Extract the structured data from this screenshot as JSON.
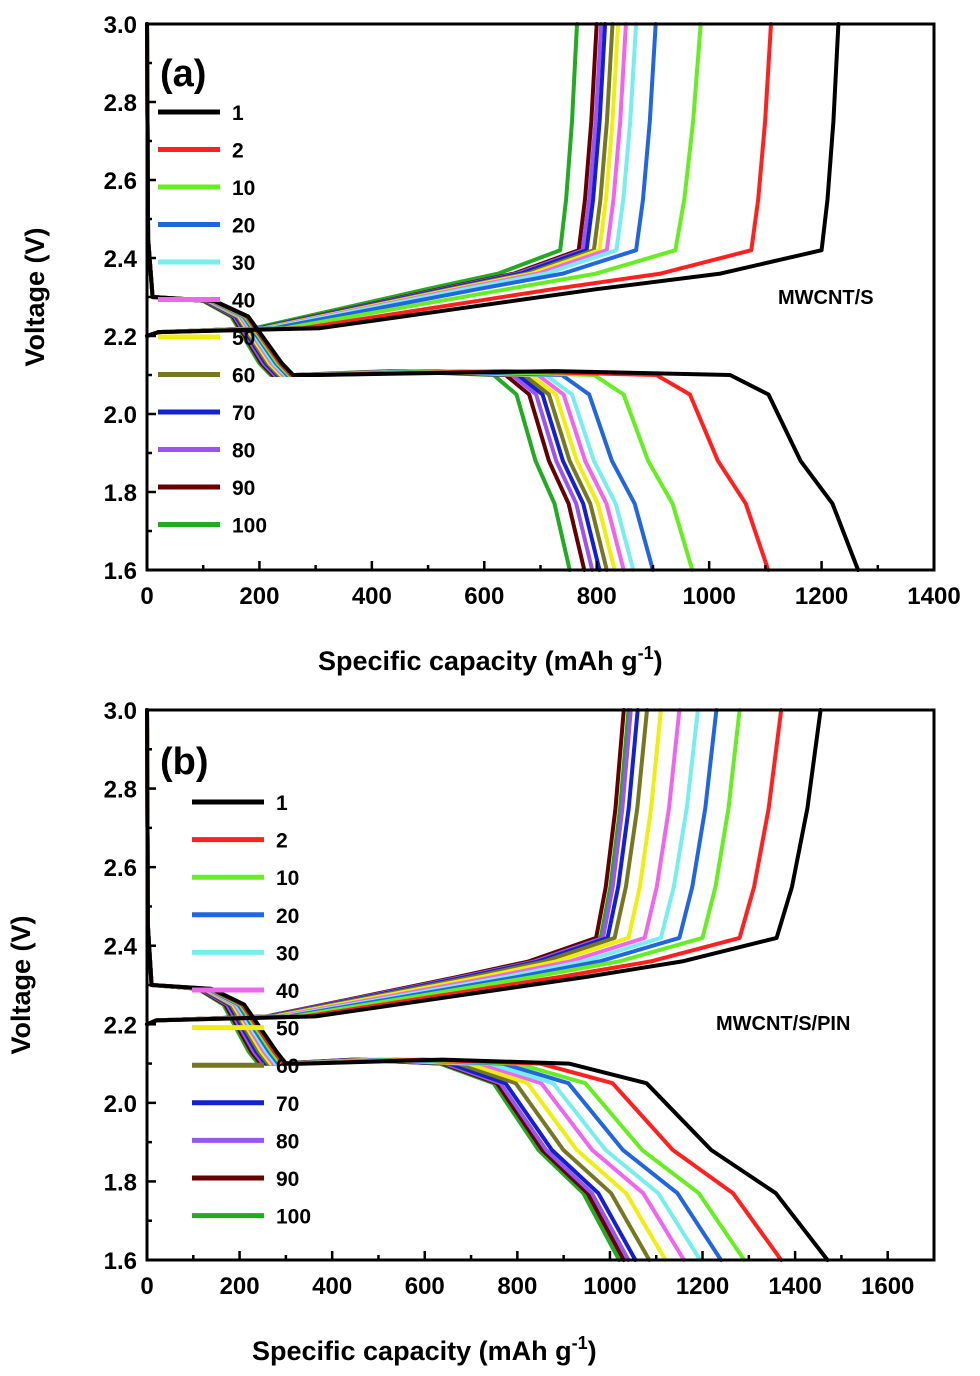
{
  "chart_data": [
    {
      "panel_label": "(a)",
      "sample_label": "MWCNT/S",
      "type": "line",
      "xlabel": "Specific capacity (mAh g",
      "xlabel_sup": "-1",
      "xlabel_end": ")",
      "ylabel": "Voltage (V)",
      "xlim": [
        0,
        1400
      ],
      "ylim": [
        1.6,
        3.0
      ],
      "x_ticks": [
        0,
        200,
        400,
        600,
        800,
        1000,
        1200,
        1400
      ],
      "y_ticks": [
        1.6,
        1.8,
        2.0,
        2.2,
        2.4,
        2.6,
        2.8,
        3.0
      ],
      "legend_position": "left",
      "legend": [
        "1",
        "2",
        "10",
        "20",
        "30",
        "40",
        "50",
        "60",
        "70",
        "80",
        "90",
        "100"
      ],
      "series": [
        {
          "name": "1",
          "color": "#000000",
          "discharge_end": 1265,
          "charge_end": 1230,
          "charge_pt": 1200
        },
        {
          "name": "2",
          "color": "#ff2020",
          "discharge_end": 1105,
          "charge_end": 1110,
          "charge_pt": 1075
        },
        {
          "name": "10",
          "color": "#66ee22",
          "discharge_end": 970,
          "charge_end": 985,
          "charge_pt": 940
        },
        {
          "name": "20",
          "color": "#2266dd",
          "discharge_end": 900,
          "charge_end": 905,
          "charge_pt": 870
        },
        {
          "name": "30",
          "color": "#77eeee",
          "discharge_end": 865,
          "charge_end": 870,
          "charge_pt": 835
        },
        {
          "name": "40",
          "color": "#ee66ee",
          "discharge_end": 848,
          "charge_end": 852,
          "charge_pt": 818
        },
        {
          "name": "50",
          "color": "#eeee11",
          "discharge_end": 832,
          "charge_end": 838,
          "charge_pt": 805
        },
        {
          "name": "60",
          "color": "#777722",
          "discharge_end": 818,
          "charge_end": 828,
          "charge_pt": 795
        },
        {
          "name": "70",
          "color": "#1122cc",
          "discharge_end": 805,
          "charge_end": 815,
          "charge_pt": 782
        },
        {
          "name": "80",
          "color": "#9955ee",
          "discharge_end": 792,
          "charge_end": 808,
          "charge_pt": 775
        },
        {
          "name": "90",
          "color": "#660000",
          "discharge_end": 778,
          "charge_end": 800,
          "charge_pt": 768
        },
        {
          "name": "100",
          "color": "#22aa22",
          "discharge_end": 752,
          "charge_end": 765,
          "charge_pt": 735
        }
      ]
    },
    {
      "panel_label": "(b)",
      "sample_label": "MWCNT/S/PIN",
      "type": "line",
      "xlabel": "Specific capacity (mAh g",
      "xlabel_sup": "-1",
      "xlabel_end": ")",
      "ylabel": "Voltage (V)",
      "xlim": [
        0,
        1700
      ],
      "ylim": [
        1.6,
        3.0
      ],
      "x_ticks": [
        0,
        200,
        400,
        600,
        800,
        1000,
        1200,
        1400,
        1600
      ],
      "y_ticks": [
        1.6,
        1.8,
        2.0,
        2.2,
        2.4,
        2.6,
        2.8,
        3.0
      ],
      "legend_position": "left",
      "legend": [
        "1",
        "2",
        "10",
        "20",
        "30",
        "40",
        "50",
        "60",
        "70",
        "80",
        "90",
        "100"
      ],
      "series": [
        {
          "name": "1",
          "color": "#000000",
          "discharge_end": 1470,
          "charge_end": 1455,
          "charge_pt": 1360
        },
        {
          "name": "2",
          "color": "#ff2020",
          "discharge_end": 1370,
          "charge_end": 1370,
          "charge_pt": 1280
        },
        {
          "name": "10",
          "color": "#66ee22",
          "discharge_end": 1290,
          "charge_end": 1280,
          "charge_pt": 1200
        },
        {
          "name": "20",
          "color": "#2266dd",
          "discharge_end": 1240,
          "charge_end": 1230,
          "charge_pt": 1150
        },
        {
          "name": "30",
          "color": "#77eeee",
          "discharge_end": 1195,
          "charge_end": 1190,
          "charge_pt": 1110
        },
        {
          "name": "40",
          "color": "#ee66ee",
          "discharge_end": 1160,
          "charge_end": 1150,
          "charge_pt": 1075
        },
        {
          "name": "50",
          "color": "#eeee11",
          "discharge_end": 1120,
          "charge_end": 1110,
          "charge_pt": 1040
        },
        {
          "name": "60",
          "color": "#777722",
          "discharge_end": 1085,
          "charge_end": 1080,
          "charge_pt": 1010
        },
        {
          "name": "70",
          "color": "#1122cc",
          "discharge_end": 1055,
          "charge_end": 1060,
          "charge_pt": 995
        },
        {
          "name": "80",
          "color": "#9955ee",
          "discharge_end": 1040,
          "charge_end": 1045,
          "charge_pt": 985
        },
        {
          "name": "90",
          "color": "#660000",
          "discharge_end": 1030,
          "charge_end": 1030,
          "charge_pt": 970
        },
        {
          "name": "100",
          "color": "#22aa22",
          "discharge_end": 1020,
          "charge_end": 1040,
          "charge_pt": 980
        }
      ]
    }
  ]
}
